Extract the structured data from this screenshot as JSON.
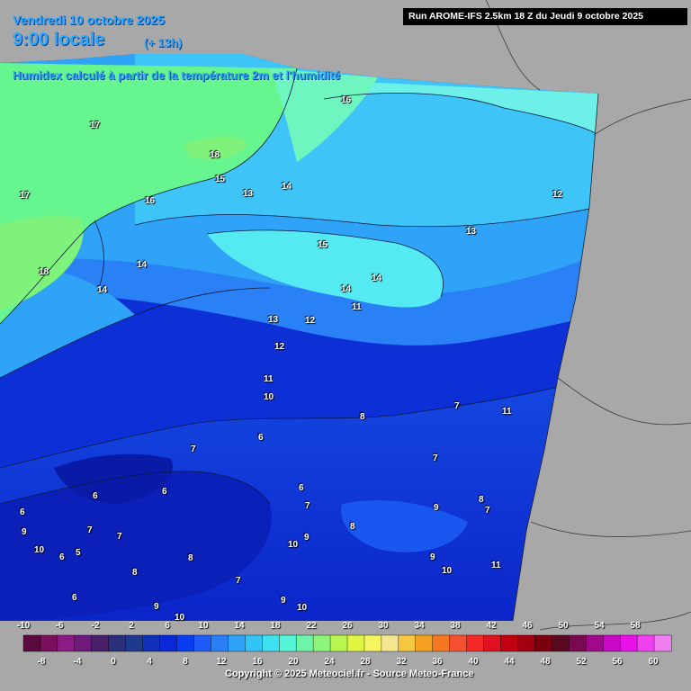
{
  "header": {
    "date": "Vendredi 10 octobre 2025",
    "time": "9:00 locale",
    "lead": "(+ 13h)",
    "variable": "Humidex calculé à partir de la température 2m et l'humidité",
    "run": "Run AROME-IFS 2.5km 18 Z du Jeudi 9 octobre 2025"
  },
  "map_labels": [
    {
      "text": "17",
      "region": "north-sea-west"
    },
    {
      "text": "17",
      "region": "north-sea-far-west"
    },
    {
      "text": "18",
      "region": "north-sea-central"
    },
    {
      "text": "18",
      "region": "west-channel"
    },
    {
      "text": "16",
      "region": "north-coast"
    },
    {
      "text": "15",
      "region": "north-coast"
    },
    {
      "text": "14",
      "region": "north"
    },
    {
      "text": "13",
      "region": "north"
    },
    {
      "text": "16",
      "region": "north-east"
    },
    {
      "text": "12",
      "region": "north-east-edge"
    },
    {
      "text": "13",
      "region": "north-east"
    },
    {
      "text": "15",
      "region": "north-central"
    },
    {
      "text": "14",
      "region": "north-central"
    },
    {
      "text": "14",
      "region": "north-central"
    },
    {
      "text": "14",
      "region": "channel"
    },
    {
      "text": "14",
      "region": "channel"
    },
    {
      "text": "13",
      "region": "central"
    },
    {
      "text": "12",
      "region": "central"
    },
    {
      "text": "11",
      "region": "central"
    },
    {
      "text": "12",
      "region": "central"
    },
    {
      "text": "11",
      "region": "central"
    },
    {
      "text": "10",
      "region": "central"
    },
    {
      "text": "8",
      "region": "central-east"
    },
    {
      "text": "7",
      "region": "east"
    },
    {
      "text": "11",
      "region": "east"
    },
    {
      "text": "7",
      "region": "central-west"
    },
    {
      "text": "7",
      "region": "east"
    },
    {
      "text": "6",
      "region": "west"
    },
    {
      "text": "6",
      "region": "west"
    },
    {
      "text": "6",
      "region": "south-west"
    },
    {
      "text": "6",
      "region": "central"
    },
    {
      "text": "7",
      "region": "central"
    },
    {
      "text": "8",
      "region": "east"
    },
    {
      "text": "7",
      "region": "east"
    },
    {
      "text": "9",
      "region": "east"
    },
    {
      "text": "8",
      "region": "central"
    },
    {
      "text": "9",
      "region": "west"
    },
    {
      "text": "7",
      "region": "west"
    },
    {
      "text": "7",
      "region": "west"
    },
    {
      "text": "10",
      "region": "south-west"
    },
    {
      "text": "5",
      "region": "south-west"
    },
    {
      "text": "6",
      "region": "south-west"
    },
    {
      "text": "10",
      "region": "central-south"
    },
    {
      "text": "9",
      "region": "central-south"
    },
    {
      "text": "9",
      "region": "south-east"
    },
    {
      "text": "10",
      "region": "south-east"
    },
    {
      "text": "11",
      "region": "south-east"
    },
    {
      "text": "8",
      "region": "south"
    },
    {
      "text": "8",
      "region": "south"
    },
    {
      "text": "6",
      "region": "south-west"
    },
    {
      "text": "7",
      "region": "south"
    },
    {
      "text": "9",
      "region": "south"
    },
    {
      "text": "10",
      "region": "south"
    },
    {
      "text": "10",
      "region": "south-west"
    },
    {
      "text": "9",
      "region": "south"
    },
    {
      "text": "6",
      "region": "south"
    }
  ],
  "scale": {
    "top_labels": [
      "-10",
      "-6",
      "-2",
      "2",
      "6",
      "10",
      "14",
      "18",
      "22",
      "26",
      "30",
      "34",
      "38",
      "42",
      "46",
      "50",
      "54",
      "58"
    ],
    "bottom_labels": [
      "-8",
      "-4",
      "0",
      "4",
      "8",
      "12",
      "16",
      "20",
      "24",
      "28",
      "32",
      "36",
      "40",
      "44",
      "48",
      "52",
      "56",
      "60"
    ],
    "colors": [
      "#5a0a3c",
      "#7a0f5e",
      "#8d1b86",
      "#6d1a7a",
      "#4a1f6a",
      "#2b2f7a",
      "#1d3a8f",
      "#1030b8",
      "#0a28d8",
      "#0a3cf0",
      "#1e5af5",
      "#2a7ff7",
      "#2ea2f7",
      "#33c4f5",
      "#3fe0f0",
      "#55f5d8",
      "#6ef5a8",
      "#8cf57a",
      "#b8f550",
      "#e0f540",
      "#f5f560",
      "#f5e690",
      "#f5c840",
      "#f5a020",
      "#f57820",
      "#f55030",
      "#f52828",
      "#e01020",
      "#c00010",
      "#a00010",
      "#7a0010",
      "#5a0a20",
      "#7a0a50",
      "#a00a8a",
      "#c80ac8",
      "#e812e8",
      "#f040f0",
      "#f080f0"
    ]
  },
  "copyright": "Copyright © 2025 Meteociel.fr - Source Meteo-France"
}
